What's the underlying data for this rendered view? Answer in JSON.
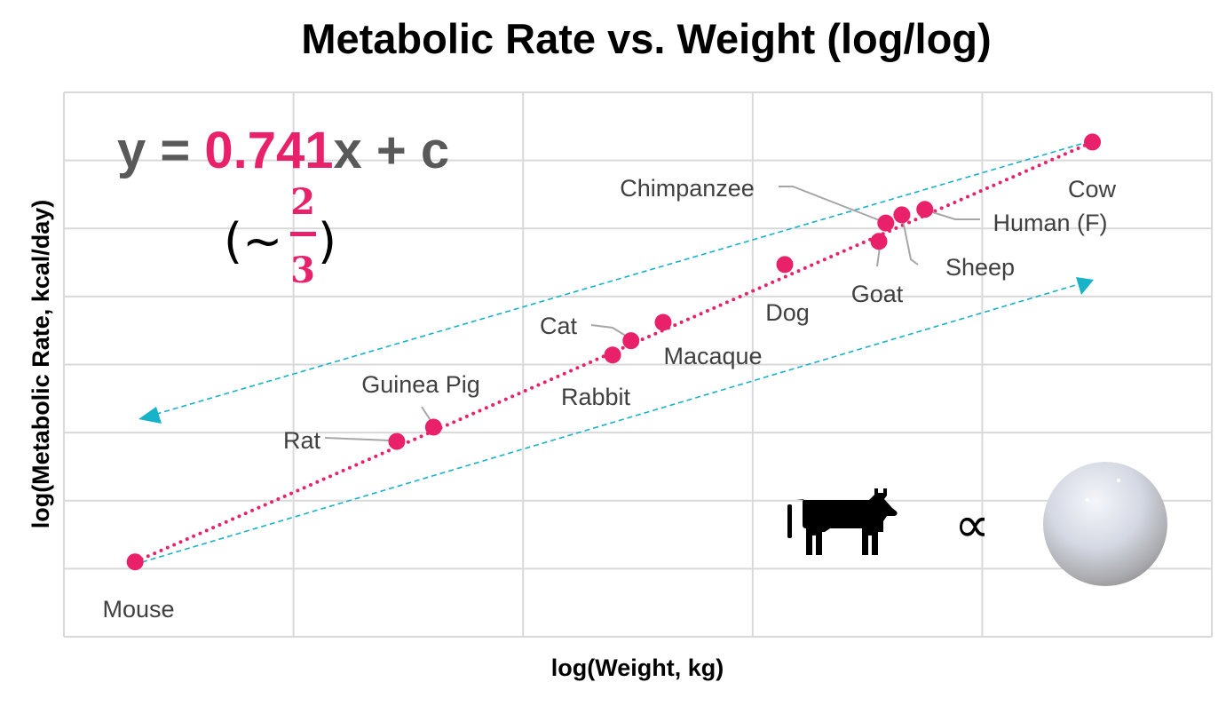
{
  "chart_data": {
    "type": "scatter",
    "title": "Metabolic Rate vs. Weight (log/log)",
    "xlabel": "log(Weight, kg)",
    "ylabel": "log(Metabolic Rate, kcal/day)",
    "xlim": [
      0,
      5
    ],
    "ylim": [
      0,
      8
    ],
    "grid": true,
    "tick_labels_shown": false,
    "colors": {
      "points": "#e8216a",
      "trendline": "#e8216a",
      "arrows": "#17b3c9",
      "grid": "#d9d9d9",
      "equation": "#595959"
    },
    "points": [
      {
        "label": "Mouse",
        "x": 0.31,
        "y": 1.1
      },
      {
        "label": "Rat",
        "x": 1.45,
        "y": 2.87
      },
      {
        "label": "Guinea Pig",
        "x": 1.61,
        "y": 3.08
      },
      {
        "label": "Rabbit",
        "x": 2.39,
        "y": 4.14
      },
      {
        "label": "Cat",
        "x": 2.47,
        "y": 4.35
      },
      {
        "label": "Macaque",
        "x": 2.61,
        "y": 4.62
      },
      {
        "label": "Dog",
        "x": 3.14,
        "y": 5.47
      },
      {
        "label": "Goat",
        "x": 3.55,
        "y": 5.81
      },
      {
        "label": "Chimpanzee",
        "x": 3.58,
        "y": 6.08
      },
      {
        "label": "Sheep",
        "x": 3.65,
        "y": 6.2
      },
      {
        "label": "Human (F)",
        "x": 3.75,
        "y": 6.28
      },
      {
        "label": "Cow",
        "x": 4.48,
        "y": 7.27
      }
    ],
    "trendline": {
      "style": "dotted",
      "from": "Mouse",
      "to": "Cow"
    },
    "annotations": {
      "equation_prefix": "y = ",
      "slope": "0.741",
      "equation_suffix": "x + c",
      "approx_open": "(~",
      "approx_num": "2",
      "approx_den": "3",
      "approx_close": ")",
      "proportional_symbol": "∝",
      "icons": [
        "cow-icon",
        "sphere-icon"
      ]
    }
  }
}
